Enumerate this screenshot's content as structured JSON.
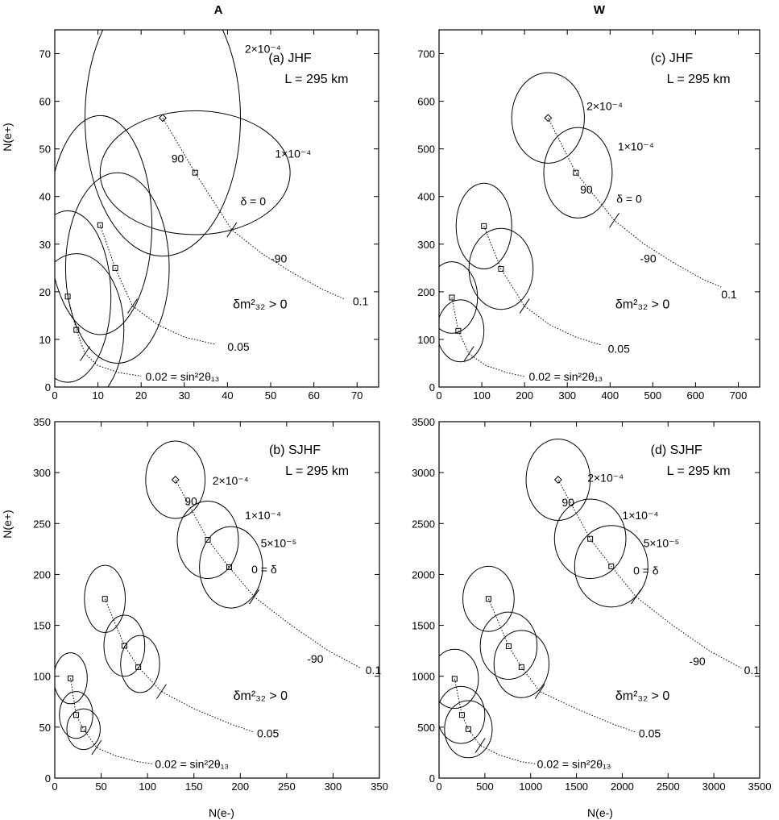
{
  "figure": {
    "column_titles": [
      "A",
      "W"
    ],
    "y_label": "N(e+)",
    "x_label": "N(e-)"
  },
  "chart_data": [
    {
      "type": "scatter",
      "panel": "(a)",
      "experiment": "JHF",
      "baseline": "L = 295 km",
      "xlim": [
        0,
        75
      ],
      "ylim": [
        0,
        75
      ],
      "xticks": [
        0,
        10,
        20,
        30,
        40,
        50,
        60,
        70
      ],
      "yticks": [
        0,
        10,
        20,
        30,
        40,
        50,
        60,
        70
      ],
      "sign_label": "δm²₃₂ > 0",
      "curves": [
        {
          "sin2_2theta13": "0.02 = sin²2θ₁₃",
          "points": [
            [
              3,
              19
            ],
            [
              5,
              12
            ]
          ],
          "ellipses": [
            {
              "cx": 3,
              "cy": 19,
              "rx": 10,
              "ry": 18
            },
            {
              "cx": 5,
              "cy": 12,
              "rx": 11,
              "ry": 16
            }
          ],
          "trail": [
            [
              7,
              7
            ],
            [
              10,
              4.5
            ],
            [
              15,
              3
            ],
            [
              20,
              2.3
            ]
          ],
          "label_at": [
            21,
            2.2
          ]
        },
        {
          "sin2_2theta13": "0.05",
          "points": [
            [
              10.5,
              34
            ],
            [
              14,
              25
            ]
          ],
          "ellipses": [
            {
              "cx": 10.5,
              "cy": 34,
              "rx": 12,
              "ry": 23
            },
            {
              "cx": 14.5,
              "cy": 25,
              "rx": 12,
              "ry": 20
            }
          ],
          "trail": [
            [
              18,
              17
            ],
            [
              24,
              13
            ],
            [
              30,
              10.5
            ],
            [
              37,
              9
            ]
          ],
          "label_at": [
            40,
            8.5
          ]
        },
        {
          "sin2_2theta13": "0.1",
          "points": [
            [
              25,
              56.5
            ],
            [
              32.5,
              45
            ]
          ],
          "ellipses": [
            {
              "cx": 25,
              "cy": 56.5,
              "rx": 18,
              "ry": 29
            },
            {
              "cx": 32.5,
              "cy": 45,
              "rx": 22,
              "ry": 13
            }
          ],
          "trail": [
            [
              41,
              33
            ],
            [
              48,
              28
            ],
            [
              55,
              24
            ],
            [
              62,
              20.5
            ],
            [
              67,
              18.5
            ]
          ],
          "label_at": [
            69,
            18
          ]
        }
      ],
      "delta_labels": [
        {
          "text": "90",
          "at": [
            27,
            48
          ]
        },
        {
          "text": "δ = 0",
          "at": [
            43,
            39
          ]
        },
        {
          "text": "-90",
          "at": [
            50,
            27
          ]
        }
      ],
      "dm2_labels": [
        {
          "text": "2×10⁻⁴",
          "at": [
            44,
            71
          ]
        },
        {
          "text": "1×10⁻⁴",
          "at": [
            51,
            49
          ]
        }
      ]
    },
    {
      "type": "scatter",
      "panel": "(c)",
      "experiment": "JHF",
      "baseline": "L = 295 km",
      "xlim": [
        0,
        750
      ],
      "ylim": [
        0,
        750
      ],
      "xticks": [
        0,
        100,
        200,
        300,
        400,
        500,
        600,
        700
      ],
      "yticks": [
        0,
        100,
        200,
        300,
        400,
        500,
        600,
        700
      ],
      "sign_label": "δm²₃₂ > 0",
      "curves": [
        {
          "sin2_2theta13": "0.02 = sin²2θ₁₃",
          "points": [
            [
              30,
              188
            ],
            [
              45,
              118
            ]
          ],
          "ellipses": [
            {
              "cx": 30,
              "cy": 188,
              "rx": 60,
              "ry": 75
            },
            {
              "cx": 50,
              "cy": 118,
              "rx": 55,
              "ry": 65
            }
          ],
          "trail": [
            [
              70,
              70
            ],
            [
              110,
              45
            ],
            [
              160,
              30
            ],
            [
              200,
              22
            ]
          ],
          "label_at": [
            210,
            22
          ]
        },
        {
          "sin2_2theta13": "0.05",
          "points": [
            [
              105,
              338
            ],
            [
              145,
              248
            ]
          ],
          "ellipses": [
            {
              "cx": 105,
              "cy": 338,
              "rx": 65,
              "ry": 90
            },
            {
              "cx": 145,
              "cy": 248,
              "rx": 75,
              "ry": 85
            }
          ],
          "trail": [
            [
              200,
              170
            ],
            [
              260,
              130
            ],
            [
              320,
              105
            ],
            [
              380,
              88
            ]
          ],
          "label_at": [
            395,
            80
          ]
        },
        {
          "sin2_2theta13": "0.1",
          "points": [
            [
              255,
              565
            ],
            [
              320,
              450
            ]
          ],
          "ellipses": [
            {
              "cx": 255,
              "cy": 565,
              "rx": 85,
              "ry": 95
            },
            {
              "cx": 325,
              "cy": 450,
              "rx": 80,
              "ry": 95
            }
          ],
          "trail": [
            [
              410,
              350
            ],
            [
              480,
              300
            ],
            [
              550,
              260
            ],
            [
              620,
              225
            ],
            [
              660,
              210
            ]
          ],
          "label_at": [
            660,
            195
          ]
        }
      ],
      "delta_labels": [
        {
          "text": "90",
          "at": [
            330,
            415
          ]
        },
        {
          "text": "δ = 0",
          "at": [
            415,
            395
          ]
        },
        {
          "text": "-90",
          "at": [
            470,
            270
          ]
        }
      ],
      "dm2_labels": [
        {
          "text": "2×10⁻⁴",
          "at": [
            345,
            590
          ]
        },
        {
          "text": "1×10⁻⁴",
          "at": [
            418,
            505
          ]
        }
      ]
    },
    {
      "type": "scatter",
      "panel": "(b)",
      "experiment": "SJHF",
      "baseline": "L = 295 km",
      "xlim": [
        0,
        350
      ],
      "ylim": [
        0,
        350
      ],
      "xticks": [
        0,
        50,
        100,
        150,
        200,
        250,
        300,
        350
      ],
      "yticks": [
        0,
        50,
        100,
        150,
        200,
        250,
        300,
        350
      ],
      "sign_label": "δm²₃₂ > 0",
      "curves": [
        {
          "sin2_2theta13": "0.02 = sin²2θ₁₃",
          "points": [
            [
              17,
              98
            ],
            [
              23,
              62
            ],
            [
              31,
              48
            ]
          ],
          "ellipses": [
            {
              "cx": 17,
              "cy": 98,
              "rx": 18,
              "ry": 25
            },
            {
              "cx": 23,
              "cy": 62,
              "rx": 18,
              "ry": 23
            },
            {
              "cx": 31,
              "cy": 48,
              "rx": 18,
              "ry": 20
            }
          ],
          "trail": [
            [
              45,
              30
            ],
            [
              65,
              22
            ],
            [
              90,
              16
            ],
            [
              105,
              14
            ]
          ],
          "label_at": [
            108,
            14
          ]
        },
        {
          "sin2_2theta13": "0.05",
          "points": [
            [
              54,
              176
            ],
            [
              75,
              130
            ],
            [
              90,
              109
            ]
          ],
          "ellipses": [
            {
              "cx": 54,
              "cy": 176,
              "rx": 22,
              "ry": 33
            },
            {
              "cx": 75,
              "cy": 130,
              "rx": 22,
              "ry": 30
            },
            {
              "cx": 92,
              "cy": 112,
              "rx": 21,
              "ry": 28
            }
          ],
          "trail": [
            [
              115,
              85
            ],
            [
              150,
              68
            ],
            [
              190,
              53
            ],
            [
              215,
              45
            ]
          ],
          "label_at": [
            218,
            44
          ]
        },
        {
          "sin2_2theta13": "0.1",
          "points": [
            [
              130,
              293
            ],
            [
              165,
              234
            ],
            [
              188,
              207
            ]
          ],
          "ellipses": [
            {
              "cx": 130,
              "cy": 293,
              "rx": 32,
              "ry": 38
            },
            {
              "cx": 165,
              "cy": 234,
              "rx": 33,
              "ry": 38
            },
            {
              "cx": 190,
              "cy": 207,
              "rx": 34,
              "ry": 40
            }
          ],
          "trail": [
            [
              215,
              178
            ],
            [
              255,
              150
            ],
            [
              295,
              125
            ],
            [
              330,
              108
            ]
          ],
          "label_at": [
            335,
            106
          ]
        }
      ],
      "delta_labels": [
        {
          "text": "90",
          "at": [
            140,
            272
          ]
        },
        {
          "text": "0 = δ",
          "at": [
            212,
            205
          ]
        },
        {
          "text": "-90",
          "at": [
            272,
            117
          ]
        }
      ],
      "dm2_labels": [
        {
          "text": "2×10⁻⁴",
          "at": [
            170,
            292
          ]
        },
        {
          "text": "1×10⁻⁴",
          "at": [
            205,
            258
          ]
        },
        {
          "text": "5×10⁻⁵",
          "at": [
            222,
            231
          ]
        }
      ]
    },
    {
      "type": "scatter",
      "panel": "(d)",
      "experiment": "SJHF",
      "baseline": "L = 295 km",
      "xlim": [
        0,
        3500
      ],
      "ylim": [
        0,
        3500
      ],
      "xticks": [
        0,
        500,
        1000,
        1500,
        2000,
        2500,
        3000,
        3500
      ],
      "yticks": [
        0,
        500,
        1000,
        1500,
        2000,
        2500,
        3000,
        3500
      ],
      "sign_label": "δm²₃₂ > 0",
      "curves": [
        {
          "sin2_2theta13": "0.02 = sin²2θ₁₃",
          "points": [
            [
              170,
              975
            ],
            [
              250,
              620
            ],
            [
              320,
              480
            ]
          ],
          "ellipses": [
            {
              "cx": 170,
              "cy": 975,
              "rx": 260,
              "ry": 290
            },
            {
              "cx": 240,
              "cy": 620,
              "rx": 260,
              "ry": 280
            },
            {
              "cx": 320,
              "cy": 480,
              "rx": 260,
              "ry": 280
            }
          ],
          "trail": [
            [
              450,
              320
            ],
            [
              650,
              230
            ],
            [
              900,
              160
            ],
            [
              1050,
              140
            ]
          ],
          "label_at": [
            1070,
            140
          ]
        },
        {
          "sin2_2theta13": "0.05",
          "points": [
            [
              540,
              1760
            ],
            [
              760,
              1295
            ],
            [
              900,
              1090
            ]
          ],
          "ellipses": [
            {
              "cx": 540,
              "cy": 1760,
              "rx": 280,
              "ry": 320
            },
            {
              "cx": 760,
              "cy": 1300,
              "rx": 310,
              "ry": 330
            },
            {
              "cx": 900,
              "cy": 1120,
              "rx": 300,
              "ry": 330
            }
          ],
          "trail": [
            [
              1100,
              850
            ],
            [
              1500,
              680
            ],
            [
              1900,
              530
            ],
            [
              2150,
              450
            ]
          ],
          "label_at": [
            2180,
            440
          ]
        },
        {
          "sin2_2theta13": "0.1",
          "points": [
            [
              1300,
              2930
            ],
            [
              1650,
              2350
            ],
            [
              1880,
              2080
            ]
          ],
          "ellipses": [
            {
              "cx": 1300,
              "cy": 2930,
              "rx": 350,
              "ry": 400
            },
            {
              "cx": 1650,
              "cy": 2350,
              "rx": 390,
              "ry": 390
            },
            {
              "cx": 1880,
              "cy": 2080,
              "rx": 400,
              "ry": 400
            }
          ],
          "trail": [
            [
              2150,
              1780
            ],
            [
              2550,
              1500
            ],
            [
              2950,
              1250
            ],
            [
              3300,
              1080
            ]
          ],
          "label_at": [
            3330,
            1060
          ]
        }
      ],
      "delta_labels": [
        {
          "text": "90",
          "at": [
            1340,
            2710
          ]
        },
        {
          "text": "0 = δ",
          "at": [
            2120,
            2040
          ]
        },
        {
          "text": "-90",
          "at": [
            2730,
            1150
          ]
        }
      ],
      "dm2_labels": [
        {
          "text": "2×10⁻⁴",
          "at": [
            1620,
            2950
          ]
        },
        {
          "text": "1×10⁻⁴",
          "at": [
            2000,
            2580
          ]
        },
        {
          "text": "5×10⁻⁵",
          "at": [
            2230,
            2310
          ]
        }
      ]
    }
  ]
}
